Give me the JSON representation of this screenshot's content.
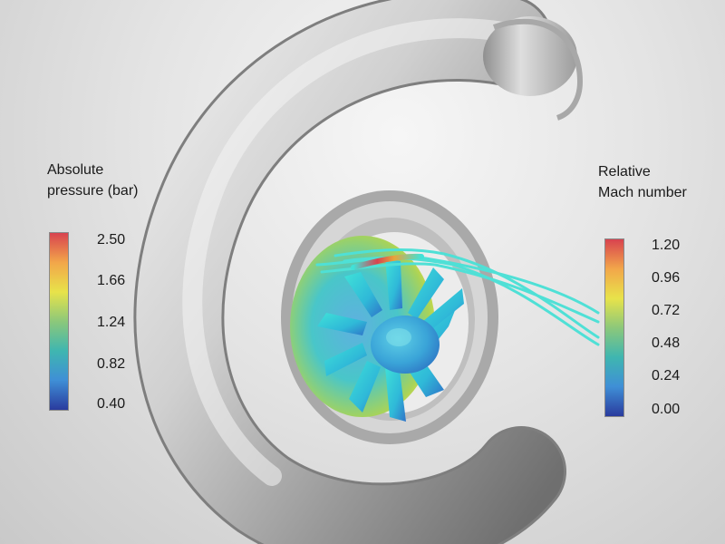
{
  "legends": {
    "pressure": {
      "title_line1": "Absolute",
      "title_line2": "pressure (bar)",
      "ticks": [
        "2.50",
        "1.66",
        "1.24",
        "0.82",
        "0.40"
      ]
    },
    "mach": {
      "title_line1": "Relative",
      "title_line2": "Mach number",
      "ticks": [
        "1.20",
        "0.96",
        "0.72",
        "0.48",
        "0.24",
        "0.00"
      ]
    }
  },
  "colormap": [
    "#2a3b9e",
    "#3f8fd6",
    "#3fb6b0",
    "#8cc87a",
    "#e8e34a",
    "#f2a64a",
    "#d8434f"
  ],
  "colors": {
    "background": "#d9d9d9",
    "volute": "#bdbdbd",
    "streamline": "#4fe0d6"
  }
}
